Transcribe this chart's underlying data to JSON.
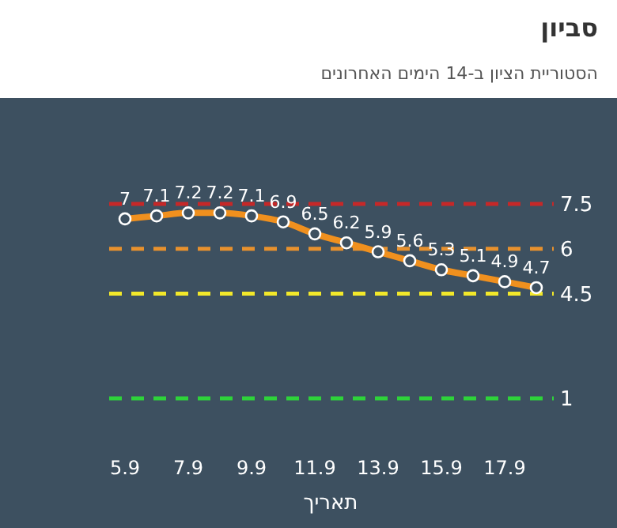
{
  "chart_data": {
    "type": "line",
    "title": "סביון",
    "subtitle": "הסטוריית הציון ב-14 הימים האחרונים",
    "xlabel": "תאריך",
    "categories": [
      "5.9",
      null,
      "7.9",
      null,
      "9.9",
      null,
      "11.9",
      null,
      "13.9",
      null,
      "15.9",
      null,
      "17.9",
      null
    ],
    "series": [
      {
        "color": "#f0901e",
        "values": [
          7,
          7.1,
          7.2,
          7.2,
          7.1,
          6.9,
          6.5,
          6.2,
          5.9,
          5.6,
          5.3,
          5.1,
          4.9,
          4.7
        ]
      }
    ],
    "ref_lines": [
      {
        "axis": "y",
        "value": 7.5,
        "label": "7.5",
        "color": "#c62828",
        "line_style": "dashed"
      },
      {
        "axis": "y",
        "value": 6,
        "label": "6",
        "color": "#e8912d",
        "line_style": "dashed"
      },
      {
        "axis": "y",
        "value": 4.5,
        "label": "4.5",
        "color": "#f2e82a",
        "line_style": "dashed"
      },
      {
        "axis": "y",
        "value": 1,
        "label": "1",
        "color": "#2ed33a",
        "line_style": "dashed"
      }
    ],
    "data_labels": true,
    "marker": "circle",
    "line_style": "solid",
    "tick_labels": "x"
  }
}
